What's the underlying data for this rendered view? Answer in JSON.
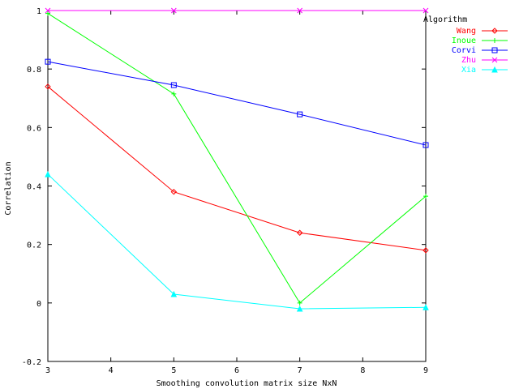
{
  "chart_data": {
    "type": "line",
    "xlabel": "Smoothing convolution matrix size NxN",
    "ylabel": "Correlation",
    "xlim": [
      3,
      9
    ],
    "ylim": [
      -0.2,
      1
    ],
    "xticks": [
      3,
      4,
      5,
      6,
      7,
      8,
      9
    ],
    "yticks": [
      -0.2,
      0,
      0.2,
      0.4,
      0.6,
      0.8,
      1
    ],
    "ytick_labels": [
      "-0.2",
      "0",
      "0.2",
      "0.4",
      "0.6",
      "0.8",
      "1"
    ],
    "grid": false,
    "legend_title": "Algorithm",
    "legend_position": "top-right",
    "x": [
      3,
      5,
      7,
      9
    ],
    "series": [
      {
        "name": "Wang",
        "color": "#ff0000",
        "marker": "diamond",
        "values": [
          0.74,
          0.38,
          0.24,
          0.18
        ]
      },
      {
        "name": "Inoue",
        "color": "#00ff00",
        "marker": "plus",
        "values": [
          0.99,
          0.715,
          0.0,
          0.365
        ]
      },
      {
        "name": "Corvi",
        "color": "#0000ff",
        "marker": "square",
        "values": [
          0.825,
          0.745,
          0.645,
          0.54
        ]
      },
      {
        "name": "Zhu",
        "color": "#ff00ff",
        "marker": "cross",
        "values": [
          1.0,
          1.0,
          1.0,
          1.0
        ]
      },
      {
        "name": "Xia",
        "color": "#00ffff",
        "marker": "triangle",
        "values": [
          0.44,
          0.03,
          -0.02,
          -0.015
        ]
      }
    ]
  }
}
